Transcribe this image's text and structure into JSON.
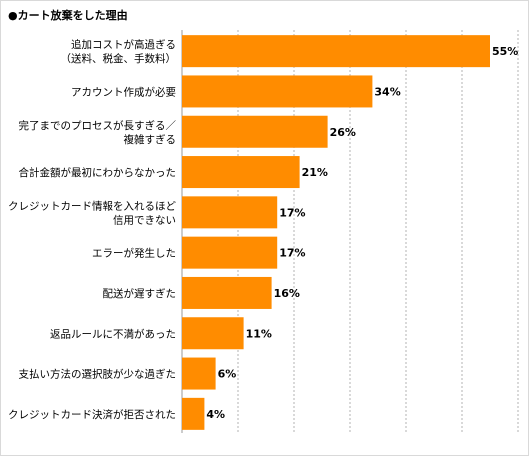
{
  "title": "●カート放棄をした理由",
  "colors": {
    "bar": "#ff8c00",
    "grid": "#b3b3b3",
    "text": "#000000"
  },
  "chart_data": {
    "type": "bar",
    "orientation": "horizontal",
    "value_suffix": "%",
    "xlim": [
      0,
      60
    ],
    "grid": true,
    "categories": [
      [
        "追加コストが高過ぎる",
        "（送料、税金、手数料）"
      ],
      [
        "アカウント作成が必要"
      ],
      [
        "完了までのプロセスが長すぎる／",
        "複雑すぎる"
      ],
      [
        "合計金額が最初にわからなかった"
      ],
      [
        "クレジットカード情報を入れるほど",
        "信用できない"
      ],
      [
        "エラーが発生した"
      ],
      [
        "配送が遅すぎた"
      ],
      [
        "返品ルールに不満があった"
      ],
      [
        "支払い方法の選択肢が少な過ぎた"
      ],
      [
        "クレジットカード決済が拒否された"
      ]
    ],
    "values": [
      55,
      34,
      26,
      21,
      17,
      17,
      16,
      11,
      6,
      4
    ]
  }
}
